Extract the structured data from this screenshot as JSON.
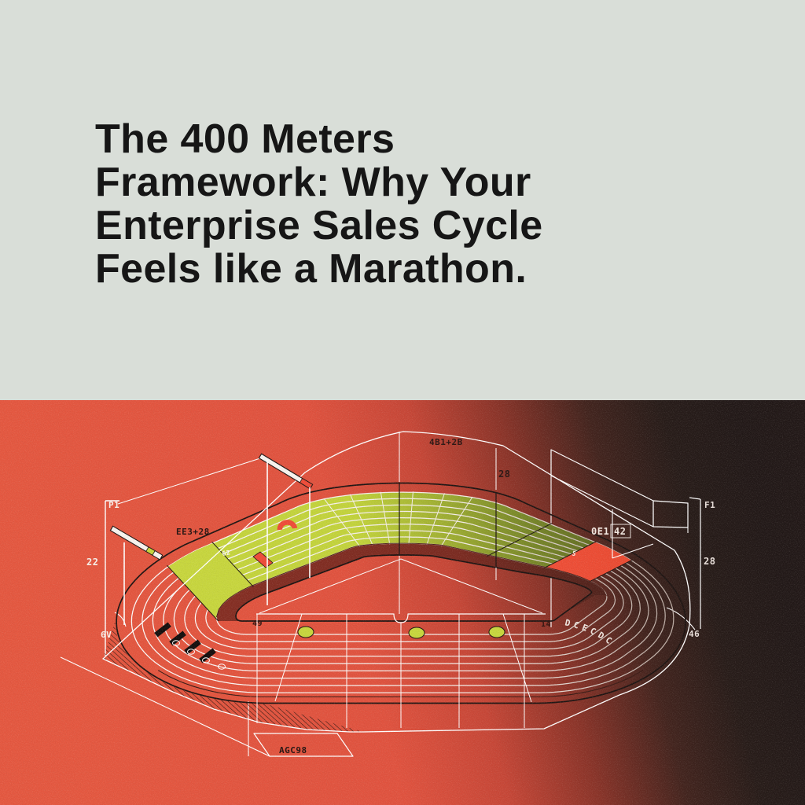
{
  "poster": {
    "title_lines": [
      "The 400 Meters",
      "Framework: Why Your",
      "Enterprise Sales Cycle",
      "Feels like a Marathon."
    ],
    "colors": {
      "top_background": "#d9ded8",
      "title_text": "#161616",
      "red_background": "#e0523e",
      "dark_background": "#211817",
      "track_green": "#c7d63d",
      "kerb_maroon": "#8c2f23",
      "accent_red": "#ee4b37",
      "line_white": "#ffffff",
      "line_black": "#1d1412"
    },
    "labels": {
      "dim_top": "4B1+2B",
      "dim_28_center": "28",
      "dim_ee3": "EE3+28",
      "dim_0e1": "0E1",
      "dim_42": "42",
      "left_p1": "P1",
      "left_22": "22",
      "left_6v": "6V",
      "right_f1": "F1",
      "right_28": "28",
      "right_46": "46",
      "infield_49": "49",
      "infield_14": "14",
      "bottom_box": "AGC98",
      "green_62": "62",
      "green_5": "5",
      "curved_text": "DCECDC"
    }
  }
}
